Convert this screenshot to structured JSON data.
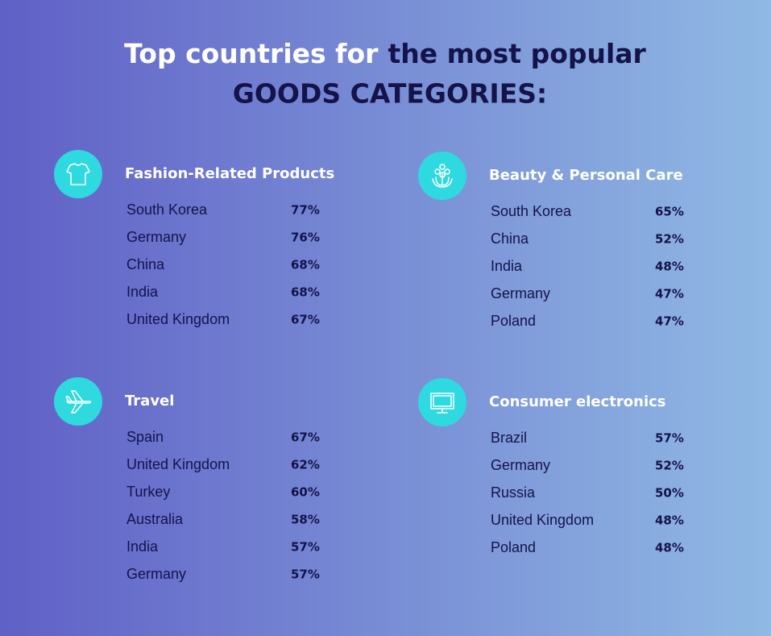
{
  "header": {
    "title_part1": "Top countries for",
    "title_part2": "the most popular",
    "title_line2": "GOODS CATEGORIES:"
  },
  "sections": [
    {
      "title": "Fashion-Related Products",
      "rows": [
        [
          "South Korea",
          "77%"
        ],
        [
          "Germany",
          "76%"
        ],
        [
          "China",
          "68%"
        ],
        [
          "India",
          "68%"
        ],
        [
          "United Kingdom",
          "67%"
        ]
      ]
    },
    {
      "title": "Beauty & Personal Care",
      "rows": [
        [
          "South Korea",
          "65%"
        ],
        [
          "China",
          "52%"
        ],
        [
          "India",
          "48%"
        ],
        [
          "Germany",
          "47%"
        ],
        [
          "Poland",
          "47%"
        ]
      ]
    },
    {
      "title": "Travel",
      "rows": [
        [
          "Spain",
          "67%"
        ],
        [
          "United Kingdom",
          "62%"
        ],
        [
          "Turkey",
          "60%"
        ],
        [
          "Australia",
          "58%"
        ],
        [
          "India",
          "57%"
        ],
        [
          "Germany",
          "57%"
        ]
      ]
    },
    {
      "title": "Consumer electronics",
      "rows": [
        [
          "Brazil",
          "57%"
        ],
        [
          "Germany",
          "52%"
        ],
        [
          "Russia",
          "50%"
        ],
        [
          "United Kingdom",
          "48%"
        ],
        [
          "Poland",
          "48%"
        ]
      ]
    }
  ]
}
